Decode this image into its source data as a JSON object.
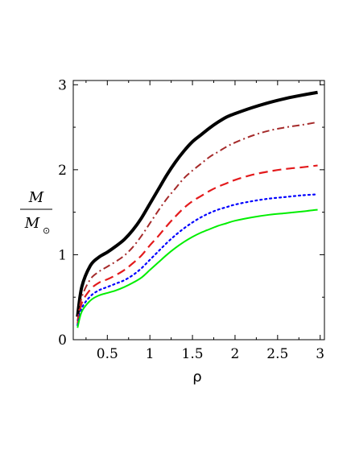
{
  "chart_data": {
    "type": "line",
    "title": "",
    "xlabel": "ρ",
    "ylabel": {
      "numerator": "M",
      "denominator": "M",
      "sub_symbol": "⊙"
    },
    "xlim": [
      0.1,
      3.05
    ],
    "ylim": [
      0,
      3.05
    ],
    "x_ticks": [
      0.5,
      1,
      1.5,
      2,
      2.5,
      3
    ],
    "x_tick_labels": [
      "0.5",
      "1",
      "1.5",
      "2",
      "2.5",
      "3"
    ],
    "y_ticks": [
      0,
      1,
      2,
      3
    ],
    "y_tick_labels": [
      "0",
      "1",
      "2",
      "3"
    ],
    "grid": false,
    "legend": "none",
    "series": [
      {
        "color": "#000000",
        "style": "solid",
        "width": 4,
        "x": [
          0.15,
          0.2,
          0.3,
          0.4,
          0.5,
          0.6,
          0.7,
          0.8,
          0.9,
          1.0,
          1.1,
          1.2,
          1.3,
          1.4,
          1.5,
          1.6,
          1.7,
          1.8,
          1.9,
          2.0,
          2.2,
          2.4,
          2.6,
          2.8,
          2.97
        ],
        "y": [
          0.27,
          0.62,
          0.87,
          0.97,
          1.03,
          1.1,
          1.18,
          1.29,
          1.43,
          1.6,
          1.77,
          1.94,
          2.09,
          2.22,
          2.33,
          2.41,
          2.49,
          2.56,
          2.62,
          2.66,
          2.73,
          2.79,
          2.84,
          2.88,
          2.91
        ]
      },
      {
        "color": "#a52a2a",
        "style": "dashdot",
        "width": 2,
        "x": [
          0.15,
          0.2,
          0.3,
          0.4,
          0.5,
          0.6,
          0.7,
          0.8,
          0.9,
          1.0,
          1.1,
          1.2,
          1.3,
          1.4,
          1.5,
          1.6,
          1.7,
          1.8,
          1.9,
          2.0,
          2.2,
          2.4,
          2.6,
          2.8,
          2.97
        ],
        "y": [
          0.22,
          0.5,
          0.71,
          0.8,
          0.86,
          0.92,
          0.99,
          1.09,
          1.22,
          1.37,
          1.52,
          1.66,
          1.78,
          1.9,
          1.99,
          2.07,
          2.15,
          2.21,
          2.27,
          2.32,
          2.4,
          2.46,
          2.5,
          2.53,
          2.56
        ]
      },
      {
        "color": "#e31a1c",
        "style": "dashed",
        "width": 2.2,
        "x": [
          0.15,
          0.2,
          0.3,
          0.4,
          0.5,
          0.6,
          0.7,
          0.8,
          0.9,
          1.0,
          1.1,
          1.2,
          1.3,
          1.4,
          1.5,
          1.6,
          1.7,
          1.8,
          1.9,
          2.0,
          2.2,
          2.4,
          2.6,
          2.8,
          2.97
        ],
        "y": [
          0.19,
          0.43,
          0.59,
          0.67,
          0.71,
          0.76,
          0.82,
          0.9,
          0.99,
          1.11,
          1.22,
          1.34,
          1.45,
          1.55,
          1.63,
          1.69,
          1.75,
          1.8,
          1.84,
          1.88,
          1.94,
          1.98,
          2.01,
          2.03,
          2.05
        ]
      },
      {
        "color": "#0000ff",
        "style": "dotted",
        "width": 2.2,
        "x": [
          0.15,
          0.2,
          0.3,
          0.4,
          0.5,
          0.6,
          0.7,
          0.8,
          0.9,
          1.0,
          1.1,
          1.2,
          1.3,
          1.4,
          1.5,
          1.6,
          1.7,
          1.8,
          1.9,
          2.0,
          2.2,
          2.4,
          2.6,
          2.8,
          2.97
        ],
        "y": [
          0.17,
          0.37,
          0.51,
          0.58,
          0.62,
          0.66,
          0.7,
          0.76,
          0.84,
          0.94,
          1.04,
          1.14,
          1.23,
          1.31,
          1.38,
          1.44,
          1.49,
          1.53,
          1.56,
          1.59,
          1.63,
          1.66,
          1.68,
          1.7,
          1.71
        ]
      },
      {
        "color": "#00ee00",
        "style": "solid",
        "width": 2,
        "x": [
          0.15,
          0.2,
          0.3,
          0.4,
          0.5,
          0.6,
          0.7,
          0.8,
          0.9,
          1.0,
          1.1,
          1.2,
          1.3,
          1.4,
          1.5,
          1.6,
          1.7,
          1.8,
          1.9,
          2.0,
          2.2,
          2.4,
          2.6,
          2.8,
          2.97
        ],
        "y": [
          0.14,
          0.33,
          0.46,
          0.52,
          0.55,
          0.58,
          0.62,
          0.67,
          0.73,
          0.82,
          0.91,
          1.0,
          1.08,
          1.15,
          1.21,
          1.26,
          1.3,
          1.34,
          1.37,
          1.4,
          1.44,
          1.47,
          1.49,
          1.51,
          1.53
        ]
      }
    ]
  }
}
